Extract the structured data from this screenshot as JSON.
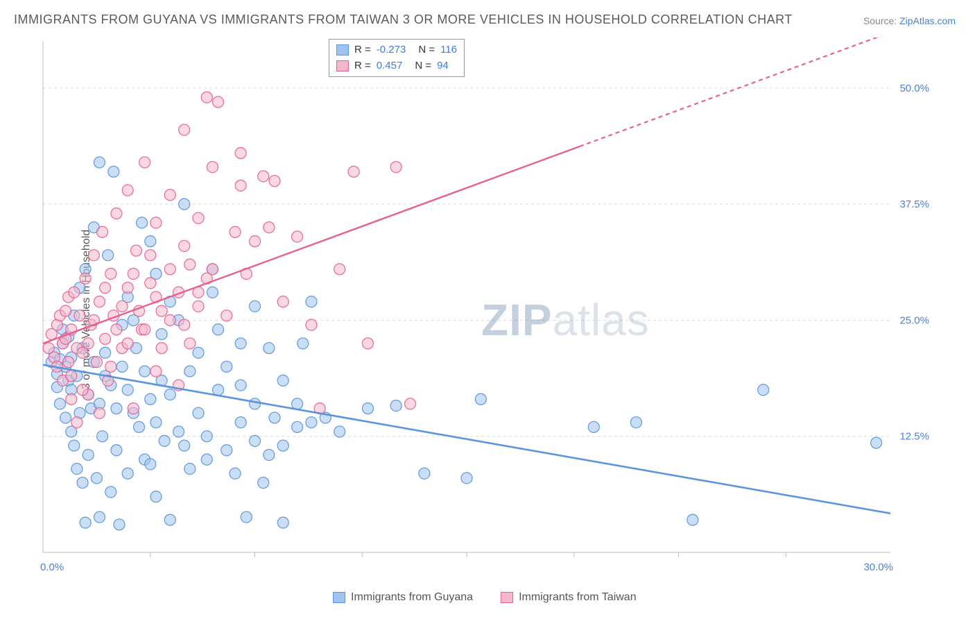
{
  "title": "IMMIGRANTS FROM GUYANA VS IMMIGRANTS FROM TAIWAN 3 OR MORE VEHICLES IN HOUSEHOLD CORRELATION CHART",
  "source_label": "Source: ",
  "source_link": "ZipAtlas.com",
  "ylabel": "3 or more Vehicles in Household",
  "watermark_zip": "ZIP",
  "watermark_rest": "atlas",
  "chart": {
    "type": "scatter_with_trend",
    "x_range": [
      0,
      30
    ],
    "y_range": [
      0,
      55
    ],
    "x_ticks": [
      0,
      30
    ],
    "x_tick_labels": [
      "0.0%",
      "30.0%"
    ],
    "x_minor_tick_positions": [
      3.8,
      7.5,
      11.3,
      15,
      18.8,
      22.5,
      26.3
    ],
    "y_ticks": [
      12.5,
      25.0,
      37.5,
      50.0
    ],
    "y_tick_labels": [
      "12.5%",
      "25.0%",
      "37.5%",
      "50.0%"
    ],
    "background": "#ffffff",
    "grid_color": "#dcdcdc",
    "axis_color": "#bbbbbb",
    "tick_label_color": "#4a7fe0",
    "marker_radius": 8,
    "marker_opacity": 0.55,
    "series": [
      {
        "name": "Immigrants from Guyana",
        "color_fill": "#9fc4ef",
        "color_stroke": "#5b95db",
        "R": "-0.273",
        "N": "116",
        "trend": {
          "x1": 0,
          "y1": 20.2,
          "x2": 30,
          "y2": 4.2,
          "dashed_from_x": null
        },
        "points": [
          [
            0.3,
            20.5
          ],
          [
            0.4,
            21.5
          ],
          [
            0.5,
            17.8
          ],
          [
            0.5,
            19.2
          ],
          [
            0.6,
            20.8
          ],
          [
            0.6,
            16.0
          ],
          [
            0.7,
            22.5
          ],
          [
            0.7,
            24.0
          ],
          [
            0.8,
            20.0
          ],
          [
            0.8,
            14.5
          ],
          [
            0.9,
            18.5
          ],
          [
            0.9,
            23.2
          ],
          [
            1.0,
            21.0
          ],
          [
            1.0,
            13.0
          ],
          [
            1.1,
            11.5
          ],
          [
            1.1,
            25.5
          ],
          [
            1.2,
            9.0
          ],
          [
            1.3,
            28.5
          ],
          [
            1.4,
            7.5
          ],
          [
            1.5,
            30.5
          ],
          [
            1.5,
            3.2
          ],
          [
            1.6,
            10.5
          ],
          [
            1.7,
            15.5
          ],
          [
            1.8,
            35.0
          ],
          [
            1.9,
            8.0
          ],
          [
            2.0,
            42.0
          ],
          [
            2.0,
            3.8
          ],
          [
            2.1,
            12.5
          ],
          [
            2.2,
            19.0
          ],
          [
            2.3,
            32.0
          ],
          [
            2.4,
            6.5
          ],
          [
            2.5,
            41.0
          ],
          [
            2.6,
            11.0
          ],
          [
            2.7,
            3.0
          ],
          [
            2.8,
            24.5
          ],
          [
            3.0,
            8.5
          ],
          [
            3.0,
            27.5
          ],
          [
            3.2,
            15.0
          ],
          [
            3.3,
            22.0
          ],
          [
            3.5,
            35.5
          ],
          [
            3.6,
            10.0
          ],
          [
            3.8,
            9.5
          ],
          [
            3.8,
            33.5
          ],
          [
            4.0,
            6.0
          ],
          [
            4.0,
            30.0
          ],
          [
            4.2,
            18.5
          ],
          [
            4.3,
            12.0
          ],
          [
            4.5,
            3.5
          ],
          [
            4.5,
            27.0
          ],
          [
            4.8,
            25.0
          ],
          [
            5.0,
            11.5
          ],
          [
            5.0,
            37.5
          ],
          [
            5.2,
            9.0
          ],
          [
            5.5,
            21.5
          ],
          [
            5.8,
            12.5
          ],
          [
            6.0,
            30.5
          ],
          [
            6.0,
            28.0
          ],
          [
            6.2,
            24.0
          ],
          [
            6.5,
            11.0
          ],
          [
            6.8,
            8.5
          ],
          [
            7.0,
            22.5
          ],
          [
            7.0,
            14.0
          ],
          [
            7.2,
            3.8
          ],
          [
            7.5,
            26.5
          ],
          [
            7.5,
            12.0
          ],
          [
            7.8,
            7.5
          ],
          [
            8.0,
            22.0
          ],
          [
            8.2,
            14.5
          ],
          [
            8.5,
            11.5
          ],
          [
            8.5,
            3.2
          ],
          [
            9.0,
            13.5
          ],
          [
            9.2,
            22.5
          ],
          [
            9.5,
            27.0
          ],
          [
            10.0,
            14.5
          ],
          [
            10.5,
            13.0
          ],
          [
            11.5,
            15.5
          ],
          [
            12.5,
            15.8
          ],
          [
            13.5,
            8.5
          ],
          [
            15.0,
            8.0
          ],
          [
            15.5,
            16.5
          ],
          [
            19.5,
            13.5
          ],
          [
            21.0,
            14.0
          ],
          [
            23.0,
            3.5
          ],
          [
            25.5,
            17.5
          ],
          [
            29.5,
            11.8
          ],
          [
            1.0,
            17.5
          ],
          [
            1.2,
            19.0
          ],
          [
            1.3,
            15.0
          ],
          [
            1.4,
            22.0
          ],
          [
            1.6,
            17.0
          ],
          [
            1.8,
            20.5
          ],
          [
            2.0,
            16.0
          ],
          [
            2.2,
            21.5
          ],
          [
            2.4,
            18.0
          ],
          [
            2.6,
            15.5
          ],
          [
            2.8,
            20.0
          ],
          [
            3.0,
            17.5
          ],
          [
            3.2,
            25.0
          ],
          [
            3.4,
            13.5
          ],
          [
            3.6,
            19.5
          ],
          [
            3.8,
            16.5
          ],
          [
            4.0,
            14.0
          ],
          [
            4.2,
            23.5
          ],
          [
            4.5,
            17.0
          ],
          [
            4.8,
            13.0
          ],
          [
            5.2,
            19.5
          ],
          [
            5.5,
            15.0
          ],
          [
            5.8,
            10.0
          ],
          [
            6.2,
            17.5
          ],
          [
            6.5,
            20.0
          ],
          [
            7.0,
            18.0
          ],
          [
            7.5,
            16.0
          ],
          [
            8.0,
            10.5
          ],
          [
            8.5,
            18.5
          ],
          [
            9.0,
            16.0
          ],
          [
            9.5,
            14.0
          ]
        ]
      },
      {
        "name": "Immigrants from Taiwan",
        "color_fill": "#f5b8cb",
        "color_stroke": "#e76093",
        "R": "0.457",
        "N": "94",
        "trend": {
          "x1": 0,
          "y1": 22.5,
          "x2": 30,
          "y2": 56.0,
          "dashed_from_x": 19
        },
        "points": [
          [
            0.2,
            22.0
          ],
          [
            0.3,
            23.5
          ],
          [
            0.4,
            21.0
          ],
          [
            0.5,
            24.5
          ],
          [
            0.5,
            20.0
          ],
          [
            0.6,
            25.5
          ],
          [
            0.7,
            22.5
          ],
          [
            0.7,
            18.5
          ],
          [
            0.8,
            26.0
          ],
          [
            0.8,
            23.0
          ],
          [
            0.9,
            20.5
          ],
          [
            0.9,
            27.5
          ],
          [
            1.0,
            24.0
          ],
          [
            1.0,
            19.0
          ],
          [
            1.1,
            28.0
          ],
          [
            1.2,
            22.0
          ],
          [
            1.3,
            25.5
          ],
          [
            1.4,
            21.5
          ],
          [
            1.5,
            29.5
          ],
          [
            1.6,
            17.0
          ],
          [
            1.7,
            24.5
          ],
          [
            1.8,
            32.0
          ],
          [
            1.9,
            20.5
          ],
          [
            2.0,
            27.0
          ],
          [
            2.1,
            34.5
          ],
          [
            2.2,
            23.0
          ],
          [
            2.3,
            18.5
          ],
          [
            2.4,
            30.0
          ],
          [
            2.5,
            25.5
          ],
          [
            2.6,
            36.5
          ],
          [
            2.8,
            22.0
          ],
          [
            3.0,
            28.5
          ],
          [
            3.0,
            39.0
          ],
          [
            3.2,
            15.5
          ],
          [
            3.3,
            32.5
          ],
          [
            3.5,
            24.0
          ],
          [
            3.6,
            42.0
          ],
          [
            3.8,
            29.0
          ],
          [
            4.0,
            35.5
          ],
          [
            4.0,
            19.5
          ],
          [
            4.2,
            26.0
          ],
          [
            4.5,
            38.5
          ],
          [
            4.5,
            30.5
          ],
          [
            4.8,
            18.0
          ],
          [
            5.0,
            33.0
          ],
          [
            5.0,
            45.5
          ],
          [
            5.2,
            22.5
          ],
          [
            5.5,
            36.0
          ],
          [
            5.5,
            28.0
          ],
          [
            5.8,
            49.0
          ],
          [
            6.0,
            30.5
          ],
          [
            6.0,
            41.5
          ],
          [
            6.2,
            48.5
          ],
          [
            6.5,
            25.5
          ],
          [
            6.8,
            34.5
          ],
          [
            7.0,
            39.5
          ],
          [
            7.0,
            43.0
          ],
          [
            7.2,
            30.0
          ],
          [
            7.5,
            33.5
          ],
          [
            7.8,
            40.5
          ],
          [
            8.0,
            35.0
          ],
          [
            8.2,
            40.0
          ],
          [
            8.5,
            27.0
          ],
          [
            9.0,
            34.0
          ],
          [
            9.5,
            24.5
          ],
          [
            9.8,
            15.5
          ],
          [
            10.5,
            30.5
          ],
          [
            11.0,
            41.0
          ],
          [
            11.5,
            22.5
          ],
          [
            12.5,
            41.5
          ],
          [
            13.0,
            16.0
          ],
          [
            1.0,
            16.5
          ],
          [
            1.2,
            14.0
          ],
          [
            1.4,
            17.5
          ],
          [
            1.6,
            22.5
          ],
          [
            1.8,
            25.0
          ],
          [
            2.0,
            15.0
          ],
          [
            2.2,
            28.5
          ],
          [
            2.4,
            20.0
          ],
          [
            2.6,
            24.0
          ],
          [
            2.8,
            26.5
          ],
          [
            3.0,
            22.5
          ],
          [
            3.2,
            30.0
          ],
          [
            3.4,
            26.0
          ],
          [
            3.6,
            24.0
          ],
          [
            3.8,
            32.0
          ],
          [
            4.0,
            27.5
          ],
          [
            4.2,
            22.0
          ],
          [
            4.5,
            25.0
          ],
          [
            4.8,
            28.0
          ],
          [
            5.0,
            24.5
          ],
          [
            5.2,
            31.0
          ],
          [
            5.5,
            26.5
          ],
          [
            5.8,
            29.5
          ]
        ]
      }
    ]
  },
  "stats_legend": {
    "rows": [
      {
        "swatch_fill": "#9fc4ef",
        "swatch_stroke": "#5b95db",
        "R": "-0.273",
        "N": "116"
      },
      {
        "swatch_fill": "#f5b8cb",
        "swatch_stroke": "#e76093",
        "R": "0.457",
        "N": "94"
      }
    ]
  },
  "bottom_legend": [
    {
      "swatch_fill": "#9fc4ef",
      "swatch_stroke": "#5b95db",
      "label": "Immigrants from Guyana"
    },
    {
      "swatch_fill": "#f5b8cb",
      "swatch_stroke": "#e76093",
      "label": "Immigrants from Taiwan"
    }
  ]
}
